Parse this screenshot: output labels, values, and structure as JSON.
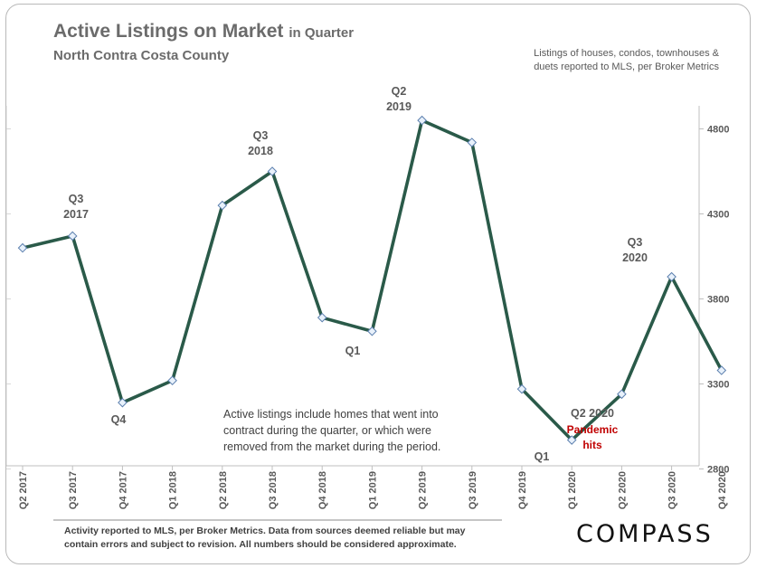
{
  "header": {
    "title": "Active Listings on Market",
    "title_suffix": "in Quarter",
    "subtitle": "North Contra Costa County",
    "note_line1": "Listings of houses, condos, townhouses &",
    "note_line2": "duets reported to MLS, per Broker Metrics"
  },
  "center_note": {
    "line1": "Active listings include homes that went into",
    "line2": "contract during the quarter, or which were",
    "line3": "removed from the market during the period."
  },
  "footer": {
    "line1": "Activity reported to MLS, per Broker Metrics. Data from sources deemed reliable but may",
    "line2": "contain errors and subject to revision. All numbers should be considered approximate.",
    "logo": "COMPASS"
  },
  "annotations": [
    {
      "lines": [
        "Q3",
        "2017"
      ],
      "color": "grey"
    },
    {
      "lines": [
        "Q4"
      ],
      "color": "grey"
    },
    {
      "lines": [
        "Q3",
        "2018"
      ],
      "color": "grey"
    },
    {
      "lines": [
        "Q1"
      ],
      "color": "grey"
    },
    {
      "lines": [
        "Q2",
        "2019"
      ],
      "color": "grey"
    },
    {
      "lines": [
        "Q1"
      ],
      "color": "grey"
    },
    {
      "lines": [
        "Q2 2020"
      ],
      "color": "grey"
    },
    {
      "lines": [
        "Pandemic",
        "hits"
      ],
      "color": "red"
    },
    {
      "lines": [
        "Q3",
        "2020"
      ],
      "color": "grey"
    }
  ],
  "chart_data": {
    "type": "line",
    "title": "Active Listings on Market in Quarter",
    "subtitle": "North Contra Costa County",
    "categories": [
      "Q2 2017",
      "Q3 2017",
      "Q4 2017",
      "Q1 2018",
      "Q2 2018",
      "Q3 2018",
      "Q4 2018",
      "Q1 2019",
      "Q2 2019",
      "Q3 2019",
      "Q4 2019",
      "Q1 2020",
      "Q2 2020",
      "Q3 2020",
      "Q4 2020"
    ],
    "values": [
      4100,
      4170,
      3190,
      3320,
      4350,
      4550,
      3690,
      3610,
      4850,
      4720,
      3270,
      2970,
      3240,
      3930,
      3380
    ],
    "yticks": [
      2800,
      3300,
      3800,
      4300,
      4800
    ],
    "ylim": [
      2800,
      4900
    ],
    "y_axis_side": "right",
    "grid": false,
    "line_color": "#2a5a49",
    "marker_fill": "#e8f1fb",
    "marker_stroke": "#5b7fae",
    "annotation_red": "#c00000"
  }
}
